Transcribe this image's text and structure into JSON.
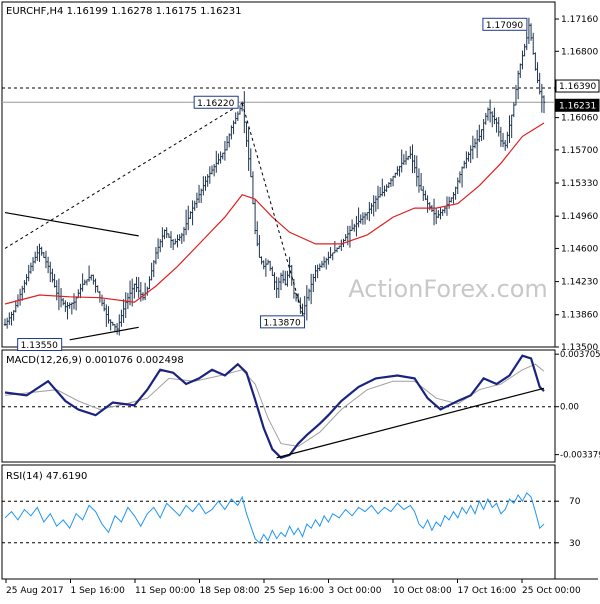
{
  "chart_data": [
    {
      "type": "candlestick",
      "symbol": "EURCHF,H4",
      "ohlc_header": [
        "1.16199",
        "1.16278",
        "1.16175",
        "1.16231"
      ],
      "y_ticks": [
        "1.17160",
        "1.16800",
        "1.16390",
        "1.16231",
        "1.16060",
        "1.15700",
        "1.15330",
        "1.14960",
        "1.14600",
        "1.14230",
        "1.13860",
        "1.13500"
      ],
      "ylim": [
        1.135,
        1.1735
      ],
      "x_ticks": [
        "25 Aug 2017",
        "1 Sep 16:00",
        "11 Sep 00:00",
        "18 Sep 08:00",
        "25 Sep 16:00",
        "3 Oct 00:00",
        "10 Oct 08:00",
        "17 Oct 16:00",
        "25 Oct 00:00"
      ],
      "price_path": [
        [
          0,
          1.1375
        ],
        [
          4,
          1.139
        ],
        [
          8,
          1.1415
        ],
        [
          12,
          1.144
        ],
        [
          16,
          1.146
        ],
        [
          20,
          1.144
        ],
        [
          24,
          1.141
        ],
        [
          28,
          1.1395
        ],
        [
          32,
          1.14
        ],
        [
          36,
          1.142
        ],
        [
          40,
          1.143
        ],
        [
          44,
          1.1405
        ],
        [
          48,
          1.138
        ],
        [
          52,
          1.137
        ],
        [
          56,
          1.14
        ],
        [
          60,
          1.142
        ],
        [
          64,
          1.1405
        ],
        [
          66,
          1.1415
        ],
        [
          70,
          1.1455
        ],
        [
          74,
          1.148
        ],
        [
          78,
          1.1465
        ],
        [
          82,
          1.1475
        ],
        [
          86,
          1.15
        ],
        [
          90,
          1.152
        ],
        [
          94,
          1.154
        ],
        [
          98,
          1.1555
        ],
        [
          102,
          1.157
        ],
        [
          105,
          1.1595
        ],
        [
          108,
          1.161
        ],
        [
          110,
          1.1622
        ],
        [
          112,
          1.158
        ],
        [
          114,
          1.154
        ],
        [
          116,
          1.148
        ],
        [
          118,
          1.145
        ],
        [
          120,
          1.144
        ],
        [
          122,
          1.1445
        ],
        [
          124,
          1.143
        ],
        [
          126,
          1.1415
        ],
        [
          128,
          1.143
        ],
        [
          130,
          1.142
        ],
        [
          132,
          1.144
        ],
        [
          134,
          1.141
        ],
        [
          136,
          1.14
        ],
        [
          138,
          1.1387
        ],
        [
          140,
          1.1405
        ],
        [
          142,
          1.142
        ],
        [
          144,
          1.1435
        ],
        [
          148,
          1.1445
        ],
        [
          152,
          1.1455
        ],
        [
          156,
          1.1465
        ],
        [
          160,
          1.148
        ],
        [
          164,
          1.149
        ],
        [
          168,
          1.15
        ],
        [
          172,
          1.1515
        ],
        [
          176,
          1.1525
        ],
        [
          180,
          1.154
        ],
        [
          184,
          1.1555
        ],
        [
          188,
          1.1565
        ],
        [
          190,
          1.155
        ],
        [
          192,
          1.153
        ],
        [
          196,
          1.151
        ],
        [
          200,
          1.1495
        ],
        [
          204,
          1.1505
        ],
        [
          208,
          1.152
        ],
        [
          212,
          1.155
        ],
        [
          216,
          1.157
        ],
        [
          220,
          1.1585
        ],
        [
          224,
          1.1615
        ],
        [
          228,
          1.16
        ],
        [
          230,
          1.158
        ],
        [
          232,
          1.1575
        ],
        [
          236,
          1.162
        ],
        [
          238,
          1.1655
        ],
        [
          240,
          1.1675
        ],
        [
          242,
          1.1695
        ],
        [
          243,
          1.1709
        ],
        [
          244,
          1.1695
        ],
        [
          246,
          1.166
        ],
        [
          248,
          1.1635
        ],
        [
          250,
          1.1623
        ]
      ],
      "ma_path": [
        [
          0,
          1.1398
        ],
        [
          16,
          1.1408
        ],
        [
          30,
          1.1406
        ],
        [
          44,
          1.1405
        ],
        [
          60,
          1.14
        ],
        [
          70,
          1.1418
        ],
        [
          80,
          1.144
        ],
        [
          92,
          1.147
        ],
        [
          102,
          1.1495
        ],
        [
          110,
          1.152
        ],
        [
          116,
          1.1515
        ],
        [
          124,
          1.1495
        ],
        [
          132,
          1.1478
        ],
        [
          144,
          1.1465
        ],
        [
          156,
          1.1465
        ],
        [
          168,
          1.1475
        ],
        [
          180,
          1.1495
        ],
        [
          190,
          1.1505
        ],
        [
          200,
          1.1505
        ],
        [
          210,
          1.151
        ],
        [
          220,
          1.153
        ],
        [
          230,
          1.1555
        ],
        [
          240,
          1.1585
        ],
        [
          250,
          1.16
        ]
      ],
      "trendlines": [
        [
          [
            0,
            1.15
          ],
          [
            62,
            1.1474
          ]
        ],
        [
          [
            30,
            1.1358
          ],
          [
            62,
            1.1372
          ]
        ]
      ],
      "dashed_lines": [
        [
          [
            0,
            1.146
          ],
          [
            110,
            1.1622
          ]
        ],
        [
          [
            110,
            1.1622
          ],
          [
            138,
            1.1387
          ]
        ]
      ],
      "resistance": 1.1639,
      "current_price": 1.16231,
      "labels": [
        {
          "text": "1.16220",
          "bar": 110,
          "price": 1.1622
        },
        {
          "text": "1.17090",
          "bar": 243,
          "price": 1.1709
        },
        {
          "text": "1.13870",
          "bar": 138,
          "price": 1.1387
        },
        {
          "text": "1.13550",
          "bar": 30,
          "price": 1.1355
        }
      ],
      "price_tags": [
        {
          "text": "1.16390",
          "price": 1.1639
        },
        {
          "text": "1.16231",
          "price": 1.16231
        }
      ],
      "watermark": "ActionForex.com"
    },
    {
      "type": "line",
      "title": "MACD(12,26,9) 0.001076 0.002498",
      "y_ticks": [
        "0.003705",
        "0.00",
        "-0.003379"
      ],
      "ylim": [
        -0.0039,
        0.004
      ],
      "macd": [
        [
          0,
          0.001
        ],
        [
          10,
          0.0008
        ],
        [
          20,
          0.0018
        ],
        [
          28,
          0.0004
        ],
        [
          34,
          -0.0002
        ],
        [
          42,
          -0.0006
        ],
        [
          50,
          0.0003
        ],
        [
          60,
          0.0001
        ],
        [
          66,
          0.0012
        ],
        [
          72,
          0.0026
        ],
        [
          78,
          0.0024
        ],
        [
          84,
          0.0016
        ],
        [
          90,
          0.002
        ],
        [
          96,
          0.0026
        ],
        [
          102,
          0.0022
        ],
        [
          108,
          0.003
        ],
        [
          112,
          0.0024
        ],
        [
          116,
          0.0005
        ],
        [
          120,
          -0.0015
        ],
        [
          124,
          -0.003
        ],
        [
          128,
          -0.0036
        ],
        [
          132,
          -0.0034
        ],
        [
          136,
          -0.0026
        ],
        [
          140,
          -0.002
        ],
        [
          146,
          -0.0012
        ],
        [
          150,
          -0.0006
        ],
        [
          156,
          0.0004
        ],
        [
          164,
          0.0014
        ],
        [
          172,
          0.002
        ],
        [
          182,
          0.0022
        ],
        [
          190,
          0.002
        ],
        [
          196,
          0.0006
        ],
        [
          202,
          -0.0002
        ],
        [
          210,
          0.0004
        ],
        [
          216,
          0.0008
        ],
        [
          222,
          0.002
        ],
        [
          228,
          0.0016
        ],
        [
          234,
          0.0022
        ],
        [
          240,
          0.0036
        ],
        [
          244,
          0.0034
        ],
        [
          248,
          0.0014
        ],
        [
          250,
          0.0011
        ]
      ],
      "signal": [
        [
          0,
          0.0008
        ],
        [
          12,
          0.001
        ],
        [
          24,
          0.0012
        ],
        [
          34,
          0.0004
        ],
        [
          44,
          -0.0002
        ],
        [
          56,
          0.0002
        ],
        [
          66,
          0.0006
        ],
        [
          76,
          0.002
        ],
        [
          88,
          0.0018
        ],
        [
          100,
          0.0022
        ],
        [
          110,
          0.0026
        ],
        [
          116,
          0.0016
        ],
        [
          122,
          -0.0008
        ],
        [
          128,
          -0.0026
        ],
        [
          136,
          -0.0028
        ],
        [
          146,
          -0.0018
        ],
        [
          156,
          -0.0002
        ],
        [
          168,
          0.0012
        ],
        [
          180,
          0.0018
        ],
        [
          190,
          0.0018
        ],
        [
          200,
          0.0006
        ],
        [
          210,
          0.0002
        ],
        [
          220,
          0.0012
        ],
        [
          230,
          0.0016
        ],
        [
          240,
          0.0026
        ],
        [
          246,
          0.003
        ],
        [
          250,
          0.0025
        ]
      ],
      "trendline": [
        [
          126,
          -0.0036
        ],
        [
          250,
          0.0013
        ]
      ],
      "zero_line": 0
    },
    {
      "type": "line",
      "title": "RSI(14) 47.6190",
      "y_ticks": [
        "70",
        "30"
      ],
      "ylim": [
        0,
        100
      ],
      "levels": [
        70,
        30
      ],
      "rsi": [
        [
          0,
          54
        ],
        [
          3,
          60
        ],
        [
          6,
          52
        ],
        [
          9,
          62
        ],
        [
          12,
          56
        ],
        [
          15,
          64
        ],
        [
          18,
          50
        ],
        [
          21,
          58
        ],
        [
          24,
          46
        ],
        [
          27,
          52
        ],
        [
          30,
          44
        ],
        [
          33,
          58
        ],
        [
          36,
          52
        ],
        [
          39,
          66
        ],
        [
          42,
          60
        ],
        [
          45,
          48
        ],
        [
          48,
          40
        ],
        [
          51,
          56
        ],
        [
          54,
          50
        ],
        [
          57,
          64
        ],
        [
          60,
          56
        ],
        [
          63,
          46
        ],
        [
          66,
          58
        ],
        [
          69,
          64
        ],
        [
          72,
          54
        ],
        [
          75,
          68
        ],
        [
          78,
          62
        ],
        [
          81,
          56
        ],
        [
          84,
          66
        ],
        [
          87,
          60
        ],
        [
          90,
          68
        ],
        [
          93,
          58
        ],
        [
          96,
          62
        ],
        [
          99,
          70
        ],
        [
          102,
          62
        ],
        [
          105,
          72
        ],
        [
          108,
          66
        ],
        [
          110,
          74
        ],
        [
          112,
          58
        ],
        [
          114,
          46
        ],
        [
          116,
          34
        ],
        [
          118,
          30
        ],
        [
          120,
          38
        ],
        [
          122,
          32
        ],
        [
          124,
          42
        ],
        [
          126,
          34
        ],
        [
          128,
          40
        ],
        [
          130,
          36
        ],
        [
          132,
          46
        ],
        [
          134,
          38
        ],
        [
          136,
          44
        ],
        [
          138,
          36
        ],
        [
          140,
          48
        ],
        [
          142,
          44
        ],
        [
          144,
          52
        ],
        [
          146,
          46
        ],
        [
          148,
          56
        ],
        [
          150,
          50
        ],
        [
          152,
          58
        ],
        [
          155,
          54
        ],
        [
          158,
          62
        ],
        [
          161,
          56
        ],
        [
          164,
          64
        ],
        [
          167,
          60
        ],
        [
          170,
          66
        ],
        [
          173,
          58
        ],
        [
          176,
          64
        ],
        [
          179,
          60
        ],
        [
          182,
          68
        ],
        [
          185,
          62
        ],
        [
          188,
          66
        ],
        [
          190,
          60
        ],
        [
          192,
          48
        ],
        [
          194,
          44
        ],
        [
          196,
          52
        ],
        [
          198,
          42
        ],
        [
          200,
          50
        ],
        [
          202,
          46
        ],
        [
          204,
          56
        ],
        [
          206,
          52
        ],
        [
          208,
          60
        ],
        [
          210,
          54
        ],
        [
          212,
          64
        ],
        [
          214,
          58
        ],
        [
          216,
          66
        ],
        [
          218,
          58
        ],
        [
          220,
          70
        ],
        [
          222,
          62
        ],
        [
          224,
          72
        ],
        [
          226,
          64
        ],
        [
          228,
          68
        ],
        [
          230,
          58
        ],
        [
          232,
          62
        ],
        [
          234,
          72
        ],
        [
          236,
          68
        ],
        [
          238,
          76
        ],
        [
          240,
          70
        ],
        [
          242,
          78
        ],
        [
          244,
          74
        ],
        [
          246,
          60
        ],
        [
          248,
          44
        ],
        [
          250,
          48
        ]
      ]
    }
  ]
}
